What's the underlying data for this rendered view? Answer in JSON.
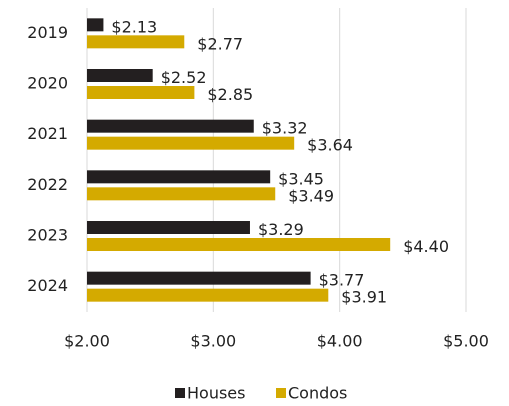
{
  "chart_data": {
    "type": "bar",
    "orientation": "horizontal",
    "categories": [
      "2019",
      "2020",
      "2021",
      "2022",
      "2023",
      "2024"
    ],
    "series": [
      {
        "name": "Houses",
        "color": "#231f20",
        "values": [
          2.13,
          2.52,
          3.32,
          3.45,
          3.29,
          3.77
        ],
        "value_labels": [
          "$2.13",
          "$2.52",
          "$3.32",
          "$3.45",
          "$3.29",
          "$3.77"
        ]
      },
      {
        "name": "Condos",
        "color": "#d4aa00",
        "values": [
          2.77,
          2.85,
          3.64,
          3.49,
          4.4,
          3.91
        ],
        "value_labels": [
          "$2.77",
          "$2.85",
          "$3.64",
          "$3.49",
          "$4.40",
          "$3.91"
        ]
      }
    ],
    "xlim": [
      2,
      5
    ],
    "xticks": [
      {
        "value": 2,
        "label": "$2.00"
      },
      {
        "value": 3,
        "label": "$3.00"
      },
      {
        "value": 4,
        "label": "$4.00"
      },
      {
        "value": 5,
        "label": "$5.00"
      }
    ],
    "grid": true,
    "legend": "bottom"
  }
}
